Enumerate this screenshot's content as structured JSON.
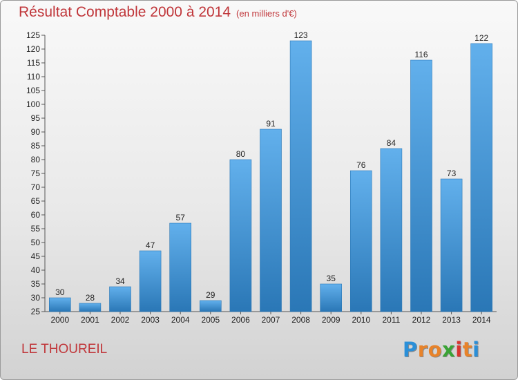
{
  "title": "Résultat Comptable 2000 à 2014",
  "subtitle": "(en milliers d'€)",
  "commune": "LE THOUREIL",
  "logo": {
    "letters": [
      "P",
      "r",
      "o",
      "x",
      "i",
      "t",
      "i"
    ],
    "colors": [
      "#2a8fd8",
      "#e8832a",
      "#e8832a",
      "#3aa335",
      "#d8342f",
      "#e8832a",
      "#2a8fd8"
    ]
  },
  "colors": {
    "accent": "#c0363a",
    "bar": "#4499d8",
    "bar_light": "#62b0ec",
    "bar_dark": "#2a77b6"
  },
  "chart_data": {
    "type": "bar",
    "categories": [
      "2000",
      "2001",
      "2002",
      "2003",
      "2004",
      "2005",
      "2006",
      "2007",
      "2008",
      "2009",
      "2010",
      "2011",
      "2012",
      "2013",
      "2014"
    ],
    "values": [
      30,
      28,
      34,
      47,
      57,
      29,
      80,
      91,
      123,
      35,
      76,
      84,
      116,
      73,
      122
    ],
    "ylim": [
      25,
      125
    ],
    "yticks": [
      25,
      30,
      35,
      40,
      45,
      50,
      55,
      60,
      65,
      70,
      75,
      80,
      85,
      90,
      95,
      100,
      105,
      110,
      115,
      120,
      125
    ],
    "grid": false,
    "data_labels": true
  }
}
